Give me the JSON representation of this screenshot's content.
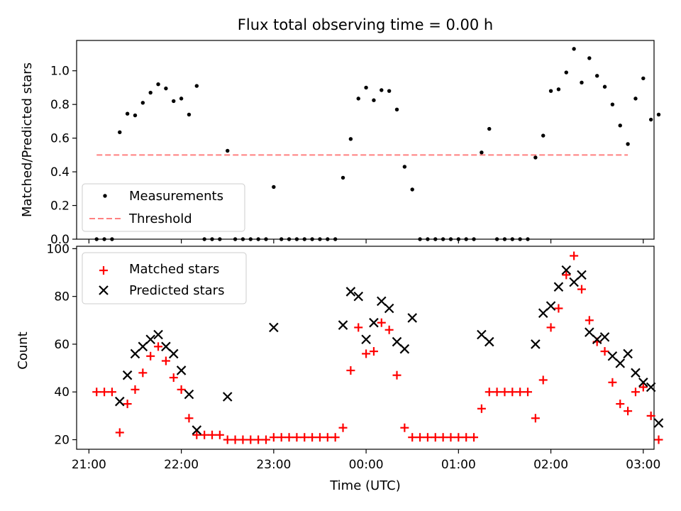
{
  "chart_data": [
    {
      "type": "scatter",
      "title": "Flux total observing time = 0.00 h",
      "xlabel": "",
      "ylabel": "Matched/Predicted stars",
      "xlim": [
        "20:52",
        "03:07"
      ],
      "ylim": [
        0,
        1.18
      ],
      "yticks": [
        "0.0",
        "0.2",
        "0.4",
        "0.6",
        "0.8",
        "1.0"
      ],
      "grid": false,
      "legend_position": "lower-left",
      "series": [
        {
          "name": "Measurements",
          "marker": "dot",
          "color": "#000000",
          "points": [
            [
              "21:05",
              0
            ],
            [
              "21:10",
              0
            ],
            [
              "21:15",
              0
            ],
            [
              "21:20",
              0.635
            ],
            [
              "21:25",
              0.745
            ],
            [
              "21:30",
              0.735
            ],
            [
              "21:35",
              0.81
            ],
            [
              "21:40",
              0.87
            ],
            [
              "21:45",
              0.92
            ],
            [
              "21:50",
              0.895
            ],
            [
              "21:55",
              0.82
            ],
            [
              "22:00",
              0.835
            ],
            [
              "22:05",
              0.74
            ],
            [
              "22:10",
              0.91
            ],
            [
              "22:15",
              0
            ],
            [
              "22:20",
              0
            ],
            [
              "22:25",
              0
            ],
            [
              "22:30",
              0.525
            ],
            [
              "22:35",
              0
            ],
            [
              "22:40",
              0
            ],
            [
              "22:45",
              0
            ],
            [
              "22:50",
              0
            ],
            [
              "22:55",
              0
            ],
            [
              "23:00",
              0.31
            ],
            [
              "23:05",
              0
            ],
            [
              "23:10",
              0
            ],
            [
              "23:15",
              0
            ],
            [
              "23:20",
              0
            ],
            [
              "23:25",
              0
            ],
            [
              "23:30",
              0
            ],
            [
              "23:35",
              0
            ],
            [
              "23:40",
              0
            ],
            [
              "23:45",
              0.365
            ],
            [
              "23:50",
              0.595
            ],
            [
              "23:55",
              0.835
            ],
            [
              "00:00",
              0.9
            ],
            [
              "00:05",
              0.825
            ],
            [
              "00:10",
              0.885
            ],
            [
              "00:15",
              0.88
            ],
            [
              "00:20",
              0.77
            ],
            [
              "00:25",
              0.43
            ],
            [
              "00:30",
              0.295
            ],
            [
              "00:35",
              0
            ],
            [
              "00:40",
              0
            ],
            [
              "00:45",
              0
            ],
            [
              "00:50",
              0
            ],
            [
              "00:55",
              0
            ],
            [
              "01:00",
              0
            ],
            [
              "01:05",
              0
            ],
            [
              "01:10",
              0
            ],
            [
              "01:15",
              0.515
            ],
            [
              "01:20",
              0.655
            ],
            [
              "01:25",
              0
            ],
            [
              "01:30",
              0
            ],
            [
              "01:35",
              0
            ],
            [
              "01:40",
              0
            ],
            [
              "01:45",
              0
            ],
            [
              "01:50",
              0.485
            ],
            [
              "01:55",
              0.615
            ],
            [
              "02:00",
              0.88
            ],
            [
              "02:05",
              0.89
            ],
            [
              "02:10",
              0.99
            ],
            [
              "02:15",
              1.13
            ],
            [
              "02:20",
              0.93
            ],
            [
              "02:25",
              1.075
            ],
            [
              "02:30",
              0.97
            ],
            [
              "02:35",
              0.905
            ],
            [
              "02:40",
              0.8
            ],
            [
              "02:45",
              0.675
            ],
            [
              "02:50",
              0.565
            ],
            [
              "02:55",
              0.835
            ],
            [
              "03:00",
              0.955
            ],
            [
              "03:05",
              0.71
            ],
            [
              "03:10",
              0.74
            ]
          ]
        },
        {
          "name": "Threshold",
          "style": "dashed",
          "color": "#ff8080",
          "x_from": "21:05",
          "x_to": "02:50",
          "value": 0.5
        }
      ]
    },
    {
      "type": "scatter",
      "title": "",
      "xlabel": "Time (UTC)",
      "ylabel": "Count",
      "xlim": [
        "20:52",
        "03:07"
      ],
      "ylim": [
        16,
        101
      ],
      "yticks": [
        "20",
        "40",
        "60",
        "80",
        "100"
      ],
      "xticks": [
        "21:00",
        "22:00",
        "23:00",
        "00:00",
        "01:00",
        "02:00",
        "03:00"
      ],
      "grid": false,
      "legend_position": "upper-left",
      "series": [
        {
          "name": "Matched stars",
          "marker": "plus",
          "color": "#ff0000",
          "points": [
            [
              "21:05",
              40
            ],
            [
              "21:10",
              40
            ],
            [
              "21:15",
              40
            ],
            [
              "21:20",
              23
            ],
            [
              "21:25",
              35
            ],
            [
              "21:30",
              41
            ],
            [
              "21:35",
              48
            ],
            [
              "21:40",
              55
            ],
            [
              "21:45",
              59
            ],
            [
              "21:50",
              53
            ],
            [
              "21:55",
              46
            ],
            [
              "22:00",
              41
            ],
            [
              "22:05",
              29
            ],
            [
              "22:10",
              22
            ],
            [
              "22:15",
              22
            ],
            [
              "22:20",
              22
            ],
            [
              "22:25",
              22
            ],
            [
              "22:30",
              20
            ],
            [
              "22:35",
              20
            ],
            [
              "22:40",
              20
            ],
            [
              "22:45",
              20
            ],
            [
              "22:50",
              20
            ],
            [
              "22:55",
              20
            ],
            [
              "23:00",
              21
            ],
            [
              "23:05",
              21
            ],
            [
              "23:10",
              21
            ],
            [
              "23:15",
              21
            ],
            [
              "23:20",
              21
            ],
            [
              "23:25",
              21
            ],
            [
              "23:30",
              21
            ],
            [
              "23:35",
              21
            ],
            [
              "23:40",
              21
            ],
            [
              "23:45",
              25
            ],
            [
              "23:50",
              49
            ],
            [
              "23:55",
              67
            ],
            [
              "00:00",
              56
            ],
            [
              "00:05",
              57
            ],
            [
              "00:10",
              69
            ],
            [
              "00:15",
              66
            ],
            [
              "00:20",
              47
            ],
            [
              "00:25",
              25
            ],
            [
              "00:30",
              21
            ],
            [
              "00:35",
              21
            ],
            [
              "00:40",
              21
            ],
            [
              "00:45",
              21
            ],
            [
              "00:50",
              21
            ],
            [
              "00:55",
              21
            ],
            [
              "01:00",
              21
            ],
            [
              "01:05",
              21
            ],
            [
              "01:10",
              21
            ],
            [
              "01:15",
              33
            ],
            [
              "01:20",
              40
            ],
            [
              "01:25",
              40
            ],
            [
              "01:30",
              40
            ],
            [
              "01:35",
              40
            ],
            [
              "01:40",
              40
            ],
            [
              "01:45",
              40
            ],
            [
              "01:50",
              29
            ],
            [
              "01:55",
              45
            ],
            [
              "02:00",
              67
            ],
            [
              "02:05",
              75
            ],
            [
              "02:10",
              89
            ],
            [
              "02:15",
              97
            ],
            [
              "02:20",
              83
            ],
            [
              "02:25",
              70
            ],
            [
              "02:30",
              61
            ],
            [
              "02:35",
              57
            ],
            [
              "02:40",
              44
            ],
            [
              "02:45",
              35
            ],
            [
              "02:50",
              32
            ],
            [
              "02:55",
              40
            ],
            [
              "03:00",
              42
            ],
            [
              "03:05",
              30
            ],
            [
              "03:10",
              20
            ]
          ]
        },
        {
          "name": "Predicted stars",
          "marker": "x",
          "color": "#000000",
          "points": [
            [
              "21:20",
              36
            ],
            [
              "21:25",
              47
            ],
            [
              "21:30",
              56
            ],
            [
              "21:35",
              59
            ],
            [
              "21:40",
              62
            ],
            [
              "21:45",
              64
            ],
            [
              "21:50",
              59
            ],
            [
              "21:55",
              56
            ],
            [
              "22:00",
              49
            ],
            [
              "22:05",
              39
            ],
            [
              "22:10",
              24
            ],
            [
              "22:30",
              38
            ],
            [
              "23:00",
              67
            ],
            [
              "23:45",
              68
            ],
            [
              "23:50",
              82
            ],
            [
              "23:55",
              80
            ],
            [
              "00:00",
              62
            ],
            [
              "00:05",
              69
            ],
            [
              "00:10",
              78
            ],
            [
              "00:15",
              75
            ],
            [
              "00:20",
              61
            ],
            [
              "00:25",
              58
            ],
            [
              "00:30",
              71
            ],
            [
              "01:15",
              64
            ],
            [
              "01:20",
              61
            ],
            [
              "01:50",
              60
            ],
            [
              "01:55",
              73
            ],
            [
              "02:00",
              76
            ],
            [
              "02:05",
              84
            ],
            [
              "02:10",
              91
            ],
            [
              "02:15",
              86
            ],
            [
              "02:20",
              89
            ],
            [
              "02:25",
              65
            ],
            [
              "02:30",
              62
            ],
            [
              "02:35",
              63
            ],
            [
              "02:40",
              55
            ],
            [
              "02:45",
              52
            ],
            [
              "02:50",
              56
            ],
            [
              "02:55",
              48
            ],
            [
              "03:00",
              44
            ],
            [
              "03:05",
              42
            ],
            [
              "03:10",
              27
            ]
          ]
        }
      ]
    }
  ]
}
